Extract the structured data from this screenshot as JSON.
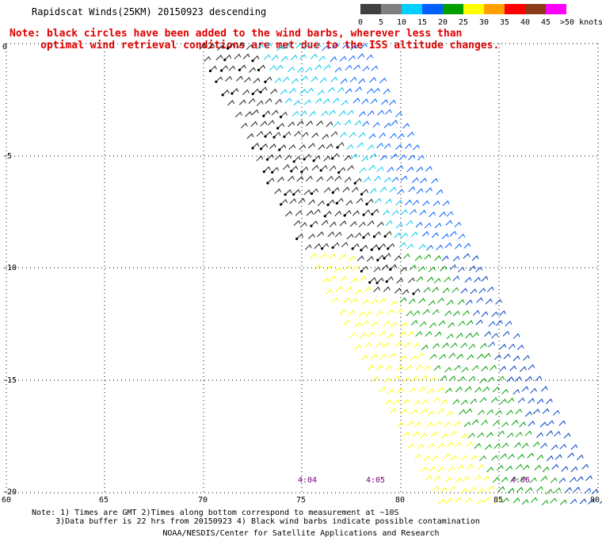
{
  "title": "Rapidscat Winds(25KM) 20150923 descending",
  "note_lines": [
    "Note: black circles have been added to the wind barbs, wherever less than",
    "     optimal wind retrieval conditions are met due to the ISS altitude changes."
  ],
  "legend": {
    "labels": [
      "0",
      "5",
      "10",
      "15",
      "20",
      "25",
      "30",
      "35",
      "40",
      "45",
      ">50 knots"
    ],
    "colors": [
      "#404040",
      "#808080",
      "#00d0ff",
      "#0060ff",
      "#00a000",
      "#ffff00",
      "#ffa000",
      "#ff0000",
      "#8b3a1a",
      "#ff00ff",
      "#5000a0"
    ]
  },
  "axes": {
    "lon_labels": [
      "60",
      "65",
      "70",
      "75",
      "80",
      "85",
      "90"
    ],
    "lat_labels": [
      "0",
      "-5",
      "-10",
      "-15",
      "-20"
    ]
  },
  "time_labels": [
    "4:04",
    "4:05",
    "4:06"
  ],
  "footer": {
    "line1": "Note: 1) Times are GMT 2)Times along bottom correspond to measurement at ~10S",
    "line2": "     3)Data buffer is 22 hrs from 20150923 4) Black wind barbs indicate possible contamination",
    "credit": "NOAA/NESDIS/Center for Satellite Applications and Research"
  }
}
